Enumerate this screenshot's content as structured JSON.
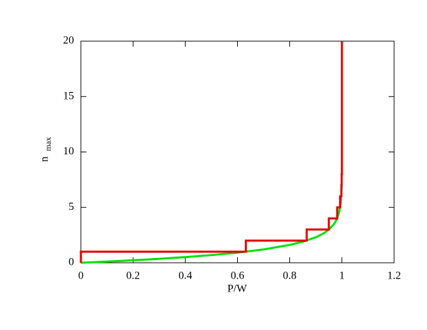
{
  "chart_data": {
    "type": "line",
    "xlabel": "P/W",
    "ylabel": "n",
    "ylabel_sub": "max",
    "xlim": [
      0,
      1.2
    ],
    "xticks": [
      0,
      0.2,
      0.4,
      0.6,
      0.8,
      1,
      1.2
    ],
    "ylim": [
      0,
      20
    ],
    "yticks": [
      0,
      5,
      10,
      15,
      20
    ],
    "grid": false,
    "series": [
      {
        "color": "#00e000",
        "x": [
          0,
          0.1,
          0.2,
          0.3,
          0.4,
          0.5,
          0.6,
          0.7,
          0.8,
          0.85,
          0.9,
          0.93,
          0.95,
          0.97,
          0.98,
          0.99,
          0.995,
          0.998,
          0.999
        ],
        "values": [
          0,
          0.105,
          0.223,
          0.357,
          0.511,
          0.693,
          0.916,
          1.204,
          1.609,
          1.897,
          2.303,
          2.659,
          2.996,
          3.507,
          3.912,
          4.605,
          5.298,
          6.215,
          6.908
        ]
      },
      {
        "color": "#e00000",
        "x": [
          0,
          0,
          0.632,
          0.632,
          0.865,
          0.865,
          0.95,
          0.95,
          0.982,
          0.982,
          0.993,
          0.993,
          0.998,
          0.998,
          0.999,
          0.999,
          1,
          1
        ],
        "values": [
          0,
          1,
          1,
          2,
          2,
          3,
          3,
          4,
          4,
          5,
          5,
          6,
          6,
          7,
          7,
          8,
          8,
          20
        ]
      }
    ]
  }
}
